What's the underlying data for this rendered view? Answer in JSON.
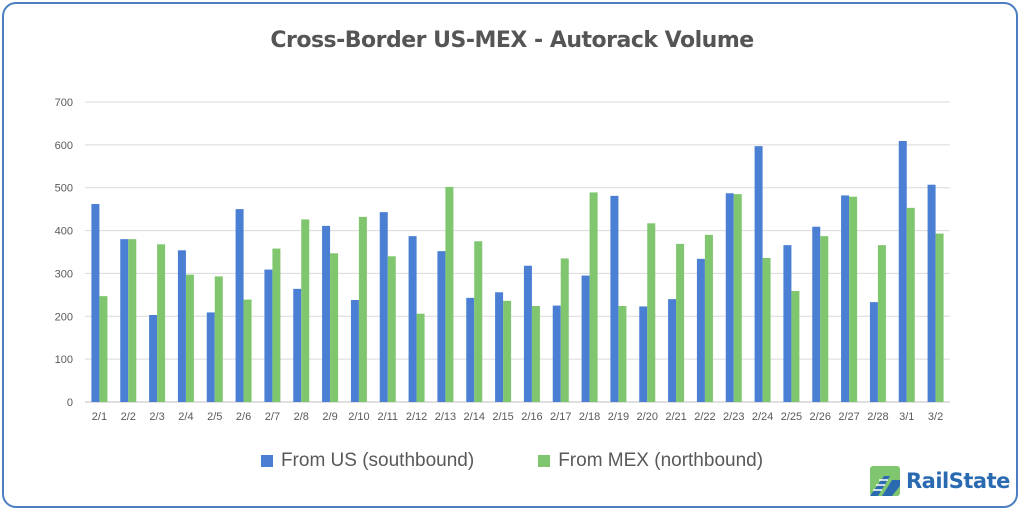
{
  "chart_data": {
    "type": "bar",
    "title": "Cross-Border US-MEX - Autorack Volume",
    "categories": [
      "2/1",
      "2/2",
      "2/3",
      "2/4",
      "2/5",
      "2/6",
      "2/7",
      "2/8",
      "2/9",
      "2/10",
      "2/11",
      "2/12",
      "2/13",
      "2/14",
      "2/15",
      "2/16",
      "2/17",
      "2/18",
      "2/19",
      "2/20",
      "2/21",
      "2/22",
      "2/23",
      "2/24",
      "2/25",
      "2/26",
      "2/27",
      "2/28",
      "3/1",
      "3/2"
    ],
    "series": [
      {
        "name": "From US (southbound)",
        "color": "#4a7fd4",
        "values": [
          462,
          380,
          203,
          354,
          209,
          450,
          309,
          264,
          411,
          238,
          443,
          387,
          352,
          243,
          256,
          318,
          225,
          295,
          481,
          223,
          240,
          334,
          487,
          597,
          366,
          409,
          482,
          233,
          609,
          507
        ]
      },
      {
        "name": "From MEX (northbound)",
        "color": "#7fc66e",
        "values": [
          247,
          380,
          368,
          297,
          293,
          239,
          358,
          426,
          347,
          432,
          340,
          206,
          502,
          375,
          236,
          224,
          335,
          489,
          224,
          417,
          369,
          390,
          485,
          336,
          259,
          387,
          479,
          366,
          453,
          393
        ]
      }
    ],
    "yticks": [
      0,
      100,
      200,
      300,
      400,
      500,
      600,
      700
    ],
    "ylim": [
      0,
      700
    ],
    "grid": true,
    "legend_position": "bottom"
  },
  "logo": {
    "text": "RailState"
  }
}
